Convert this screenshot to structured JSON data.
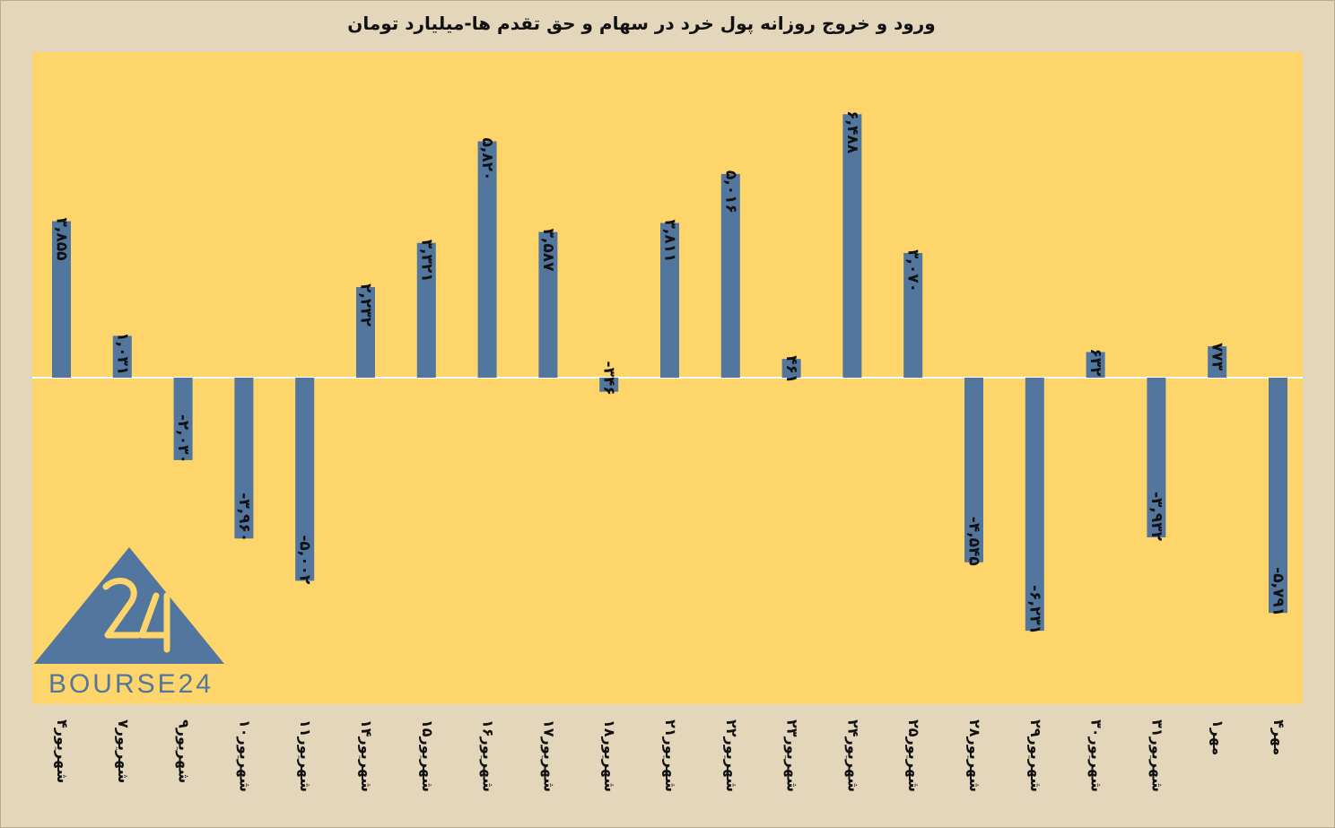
{
  "chart_data": {
    "type": "bar",
    "title": "ورود و خروج روزانه پول خرد در سهام و حق تقدم ها-میلیارد تومان",
    "categories": [
      "۴شهریور",
      "۷شهریور",
      "۹شهریور",
      "۱۰شهریور",
      "۱۱شهریور",
      "۱۴شهریور",
      "۱۵شهریور",
      "۱۶شهریور",
      "۱۷شهریور",
      "۱۸شهریور",
      "۲۱شهریور",
      "۲۲شهریور",
      "۲۳شهریور",
      "۲۴شهریور",
      "۲۵شهریور",
      "۲۸شهریور",
      "۲۹شهریور",
      "۳۰شهریور",
      "۳۱شهریور",
      "۱مهر",
      "۴مهر"
    ],
    "values": [
      3855,
      1031,
      -2030,
      -3960,
      -5002,
      2232,
      3321,
      5820,
      3587,
      -346,
      3811,
      5016,
      461,
      6488,
      3070,
      -4545,
      -6231,
      632,
      -3932,
      773,
      -5791
    ],
    "value_labels": [
      "۳,۸۵۵",
      "۱,۰۳۱",
      "-۲,۰۳۰",
      "-۳,۹۶۰",
      "-۵,۰۰۲",
      "۲,۲۳۲",
      "۳,۳۲۱",
      "۵,۸۲۰",
      "۳,۵۸۷",
      "-۳۴۶",
      "۳,۸۱۱",
      "۵,۰۱۶",
      "۴۶۱",
      "۶,۴۸۸",
      "۳,۰۷۰",
      "-۴,۵۴۵",
      "-۶,۲۳۱",
      "۶۳۲",
      "-۳,۹۳۲",
      "۷۷۳",
      "-۵,۷۹۱"
    ],
    "ylim": [
      -8000,
      8000
    ],
    "grid": false,
    "bar_color": "#52769e",
    "plot_background": "#fdd56b",
    "page_background": "#e3d6bb"
  },
  "logo": {
    "text": "BOURSE24",
    "color": "#52769e"
  }
}
